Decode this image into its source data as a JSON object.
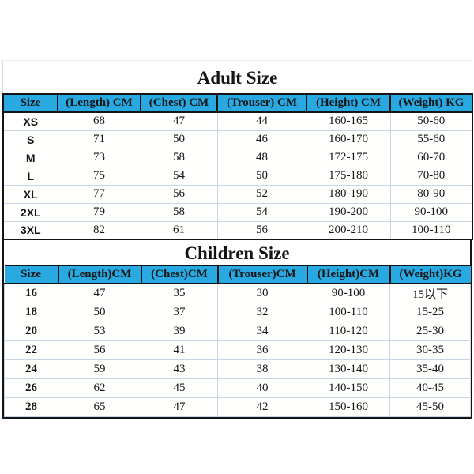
{
  "colors": {
    "background": "#ffffff",
    "header_fill": "#29a9e1",
    "grid_line": "#c8d5e6",
    "table_border": "#141414",
    "text": "#161616"
  },
  "adult": {
    "title": "Adult Size",
    "headers": [
      "Size",
      "(Length) CM",
      "(Chest) CM",
      "(Trouser) CM",
      "(Height) CM",
      "(Weight) KG"
    ],
    "rows": [
      [
        "XS",
        "68",
        "47",
        "44",
        "160-165",
        "50-60"
      ],
      [
        "S",
        "71",
        "50",
        "46",
        "160-170",
        "55-60"
      ],
      [
        "M",
        "73",
        "58",
        "48",
        "172-175",
        "60-70"
      ],
      [
        "L",
        "75",
        "54",
        "50",
        "175-180",
        "70-80"
      ],
      [
        "XL",
        "77",
        "56",
        "52",
        "180-190",
        "80-90"
      ],
      [
        "2XL",
        "79",
        "58",
        "54",
        "190-200",
        "90-100"
      ],
      [
        "3XL",
        "82",
        "61",
        "56",
        "200-210",
        "100-110"
      ]
    ]
  },
  "children": {
    "title": "Children Size",
    "headers": [
      "Size",
      "(Length)CM",
      "(Chest)CM",
      "(Trouser)CM",
      "(Height)CM",
      "(Weight)KG"
    ],
    "rows": [
      [
        "16",
        "47",
        "35",
        "30",
        "90-100",
        "15以下"
      ],
      [
        "18",
        "50",
        "37",
        "32",
        "100-110",
        "15-25"
      ],
      [
        "20",
        "53",
        "39",
        "34",
        "110-120",
        "25-30"
      ],
      [
        "22",
        "56",
        "41",
        "36",
        "120-130",
        "30-35"
      ],
      [
        "24",
        "59",
        "43",
        "38",
        "130-140",
        "35-40"
      ],
      [
        "26",
        "62",
        "45",
        "40",
        "140-150",
        "40-45"
      ],
      [
        "28",
        "65",
        "47",
        "42",
        "150-160",
        "45-50"
      ]
    ]
  },
  "chart_data": [
    {
      "type": "table",
      "title": "Adult Size",
      "columns": [
        "Size",
        "(Length) CM",
        "(Chest) CM",
        "(Trouser) CM",
        "(Height) CM",
        "(Weight) KG"
      ],
      "rows": [
        [
          "XS",
          68,
          47,
          44,
          "160-165",
          "50-60"
        ],
        [
          "S",
          71,
          50,
          46,
          "160-170",
          "55-60"
        ],
        [
          "M",
          73,
          58,
          48,
          "172-175",
          "60-70"
        ],
        [
          "L",
          75,
          54,
          50,
          "175-180",
          "70-80"
        ],
        [
          "XL",
          77,
          56,
          52,
          "180-190",
          "80-90"
        ],
        [
          "2XL",
          79,
          58,
          54,
          "190-200",
          "90-100"
        ],
        [
          "3XL",
          82,
          61,
          56,
          "200-210",
          "100-110"
        ]
      ]
    },
    {
      "type": "table",
      "title": "Children Size",
      "columns": [
        "Size",
        "(Length)CM",
        "(Chest)CM",
        "(Trouser)CM",
        "(Height)CM",
        "(Weight)KG"
      ],
      "rows": [
        [
          "16",
          47,
          35,
          30,
          "90-100",
          "15以下"
        ],
        [
          "18",
          50,
          37,
          32,
          "100-110",
          "15-25"
        ],
        [
          "20",
          53,
          39,
          34,
          "110-120",
          "25-30"
        ],
        [
          "22",
          56,
          41,
          36,
          "120-130",
          "30-35"
        ],
        [
          "24",
          59,
          43,
          38,
          "130-140",
          "35-40"
        ],
        [
          "26",
          62,
          45,
          40,
          "140-150",
          "40-45"
        ],
        [
          "28",
          65,
          47,
          42,
          "150-160",
          "45-50"
        ]
      ]
    }
  ]
}
